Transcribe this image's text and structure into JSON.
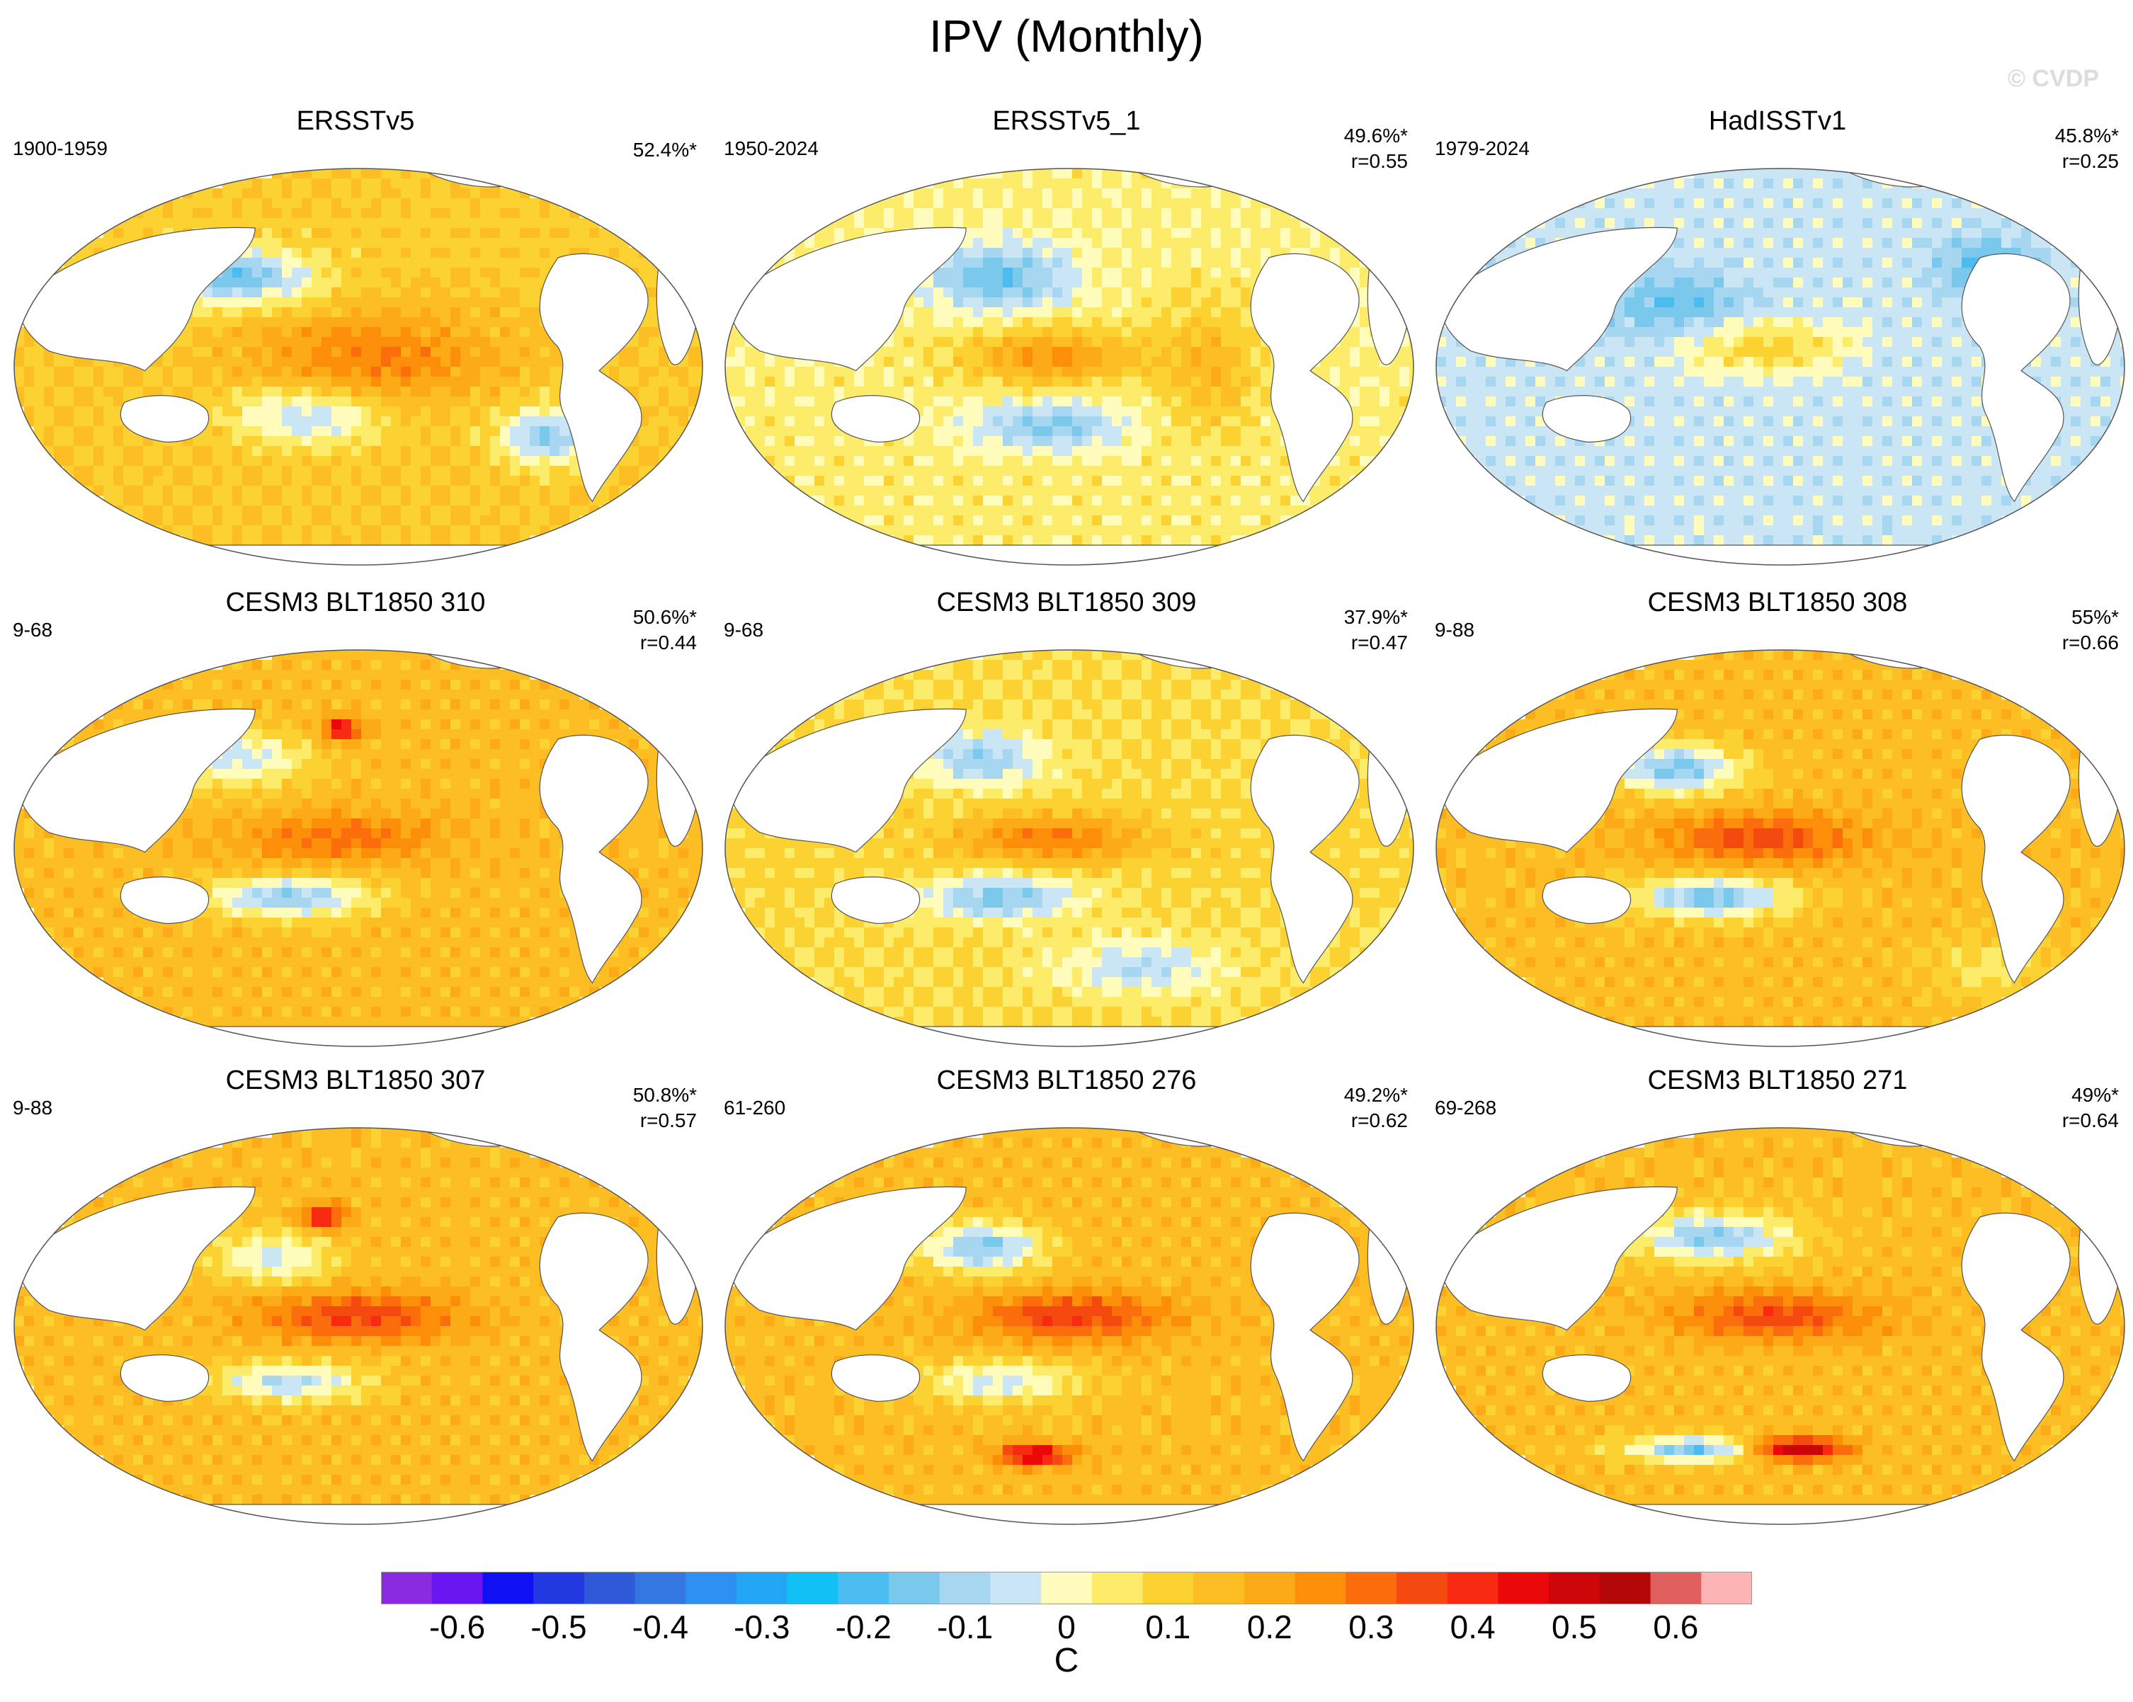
{
  "title": "IPV (Monthly)",
  "watermark": "© CVDP",
  "chart_data": {
    "type": "heatmap",
    "projection": "Robinson global map (Pacific-centered)",
    "variable": "IPV pattern regression",
    "units": "C",
    "colorbar": {
      "label": "C",
      "ticks": [
        -0.6,
        -0.5,
        -0.4,
        -0.3,
        -0.2,
        -0.1,
        0,
        0.1,
        0.2,
        0.3,
        0.4,
        0.5,
        0.6
      ],
      "tick_labels": [
        "-0.6",
        "-0.5",
        "-0.4",
        "-0.3",
        "-0.2",
        "-0.1",
        "0",
        "0.1",
        "0.2",
        "0.3",
        "0.4",
        "0.5",
        "0.6"
      ],
      "colors": [
        "#8a2be2",
        "#6a16f0",
        "#1010f5",
        "#2238e0",
        "#2e58d8",
        "#3476e0",
        "#2e90f0",
        "#22a6f4",
        "#10c0f4",
        "#4cbcf0",
        "#7ac8ec",
        "#a6d6f0",
        "#cae6f4",
        "#fffcbc",
        "#fcec6a",
        "#fcd232",
        "#fcbe22",
        "#fcaa16",
        "#fc8e0a",
        "#fa6c0c",
        "#f44a10",
        "#f82a12",
        "#ea0808",
        "#cc0606",
        "#b40808",
        "#e06060",
        "#fcb4b4"
      ]
    },
    "panels": [
      {
        "title": "ERSSTv5",
        "period": "1900-1959",
        "pct": "52.4%*",
        "r": ""
      },
      {
        "title": "ERSSTv5_1",
        "period": "1950-2024",
        "pct": "49.6%*",
        "r": "r=0.55"
      },
      {
        "title": "HadISSTv1",
        "period": "1979-2024",
        "pct": "45.8%*",
        "r": "r=0.25"
      },
      {
        "title": "CESM3 BLT1850 310",
        "period": "9-68",
        "pct": "50.6%*",
        "r": "r=0.44"
      },
      {
        "title": "CESM3 BLT1850 309",
        "period": "9-68",
        "pct": "37.9%*",
        "r": "r=0.47"
      },
      {
        "title": "CESM3 BLT1850 308",
        "period": "9-88",
        "pct": "55%*",
        "r": "r=0.66"
      },
      {
        "title": "CESM3 BLT1850 307",
        "period": "9-88",
        "pct": "50.8%*",
        "r": "r=0.57"
      },
      {
        "title": "CESM3 BLT1850 276",
        "period": "61-260",
        "pct": "49.2%*",
        "r": "r=0.62"
      },
      {
        "title": "CESM3 BLT1850 271",
        "period": "69-268",
        "pct": "49%*",
        "r": "r=0.64"
      }
    ]
  }
}
